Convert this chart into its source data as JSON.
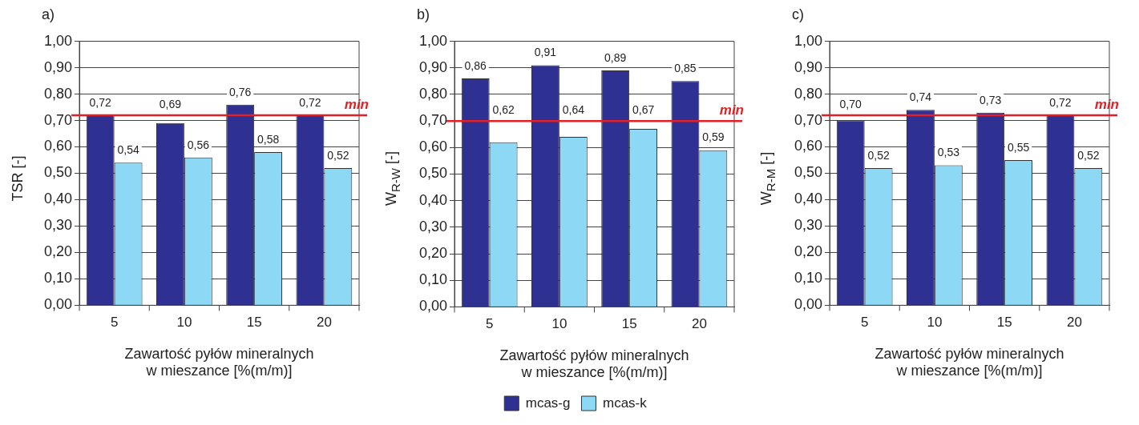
{
  "chart_data": [
    {
      "type": "bar",
      "title": "a)",
      "xlabel": "Zawartość pyłów mineralnych\nw mieszance [%(m/m)]",
      "ylabel": "TSR [-]",
      "categories": [
        "5",
        "10",
        "15",
        "20"
      ],
      "series": [
        {
          "color": "#2e3192",
          "values": [
            0.72,
            0.69,
            0.76,
            0.72
          ],
          "value_labels": [
            "0,72",
            "0,69",
            "0,76",
            "0,72"
          ]
        },
        {
          "color": "#8dd8f5",
          "values": [
            0.54,
            0.56,
            0.58,
            0.52
          ],
          "value_labels": [
            "0,54",
            "0,56",
            "0,58",
            "0,52"
          ]
        }
      ],
      "ylim": [
        0,
        1
      ],
      "yticks": [
        {
          "value": 0,
          "label": "0,00"
        },
        {
          "value": 0.1,
          "label": "0,10"
        },
        {
          "value": 0.2,
          "label": "0,20"
        },
        {
          "value": 0.3,
          "label": "0,30"
        },
        {
          "value": 0.4,
          "label": "0,40"
        },
        {
          "value": 0.5,
          "label": "0,50"
        },
        {
          "value": 0.6,
          "label": "0,60"
        },
        {
          "value": 0.7,
          "label": "0,70"
        },
        {
          "value": 0.8,
          "label": "0,80"
        },
        {
          "value": 0.9,
          "label": "0,90"
        },
        {
          "value": 1,
          "label": "1,00"
        }
      ],
      "grid": "y",
      "legend": false,
      "ref_lines": [
        {
          "axis": "y",
          "value": 0.72,
          "label": "min",
          "color": "#e31e24"
        }
      ]
    },
    {
      "type": "bar",
      "title": "b)",
      "xlabel": "Zawartość pyłów mineralnych\nw mieszance [%(m/m)]",
      "ylabel": "W$_{R-W}$ [-]",
      "categories": [
        "5",
        "10",
        "15",
        "20"
      ],
      "series": [
        {
          "name": "mcas-g",
          "color": "#2e3192",
          "values": [
            0.86,
            0.91,
            0.89,
            0.85
          ],
          "value_labels": [
            "0,86",
            "0,91",
            "0,89",
            "0,85"
          ]
        },
        {
          "name": "mcas-k",
          "color": "#8dd8f5",
          "values": [
            0.62,
            0.64,
            0.67,
            0.59
          ],
          "value_labels": [
            "0,62",
            "0,64",
            "0,67",
            "0,59"
          ]
        }
      ],
      "ylim": [
        0,
        1
      ],
      "yticks": [
        {
          "value": 0,
          "label": "0,00"
        },
        {
          "value": 0.1,
          "label": "0,10"
        },
        {
          "value": 0.2,
          "label": "0,20"
        },
        {
          "value": 0.3,
          "label": "0,30"
        },
        {
          "value": 0.4,
          "label": "0,40"
        },
        {
          "value": 0.5,
          "label": "0,50"
        },
        {
          "value": 0.6,
          "label": "0,60"
        },
        {
          "value": 0.7,
          "label": "0,70"
        },
        {
          "value": 0.8,
          "label": "0,80"
        },
        {
          "value": 0.9,
          "label": "0,90"
        },
        {
          "value": 1,
          "label": "1,00"
        }
      ],
      "grid": "y",
      "legend": "bottom",
      "ref_lines": [
        {
          "axis": "y",
          "value": 0.7,
          "label": "min",
          "color": "#e31e24"
        }
      ]
    },
    {
      "type": "bar",
      "title": "c)",
      "xlabel": "Zawartość pyłów mineralnych\nw mieszance [%(m/m)]",
      "ylabel": "W$_{R-M}$ [-]",
      "categories": [
        "5",
        "10",
        "15",
        "20"
      ],
      "series": [
        {
          "color": "#2e3192",
          "values": [
            0.7,
            0.74,
            0.73,
            0.72
          ],
          "value_labels": [
            "0,70",
            "0,74",
            "0,73",
            "0,72"
          ]
        },
        {
          "color": "#8dd8f5",
          "values": [
            0.52,
            0.53,
            0.55,
            0.52
          ],
          "value_labels": [
            "0,52",
            "0,53",
            "0,55",
            "0,52"
          ]
        }
      ],
      "ylim": [
        0,
        1
      ],
      "yticks": [
        {
          "value": 0,
          "label": "0,00"
        },
        {
          "value": 0.1,
          "label": "0,10"
        },
        {
          "value": 0.2,
          "label": "0,20"
        },
        {
          "value": 0.3,
          "label": "0,30"
        },
        {
          "value": 0.4,
          "label": "0,40"
        },
        {
          "value": 0.5,
          "label": "0,50"
        },
        {
          "value": 0.6,
          "label": "0,60"
        },
        {
          "value": 0.7,
          "label": "0,70"
        },
        {
          "value": 0.8,
          "label": "0,80"
        },
        {
          "value": 0.9,
          "label": "0,90"
        },
        {
          "value": 1,
          "label": "1,00"
        }
      ],
      "grid": "y",
      "legend": false,
      "ref_lines": [
        {
          "axis": "y",
          "value": 0.72,
          "label": "min",
          "color": "#e31e24"
        }
      ]
    }
  ]
}
